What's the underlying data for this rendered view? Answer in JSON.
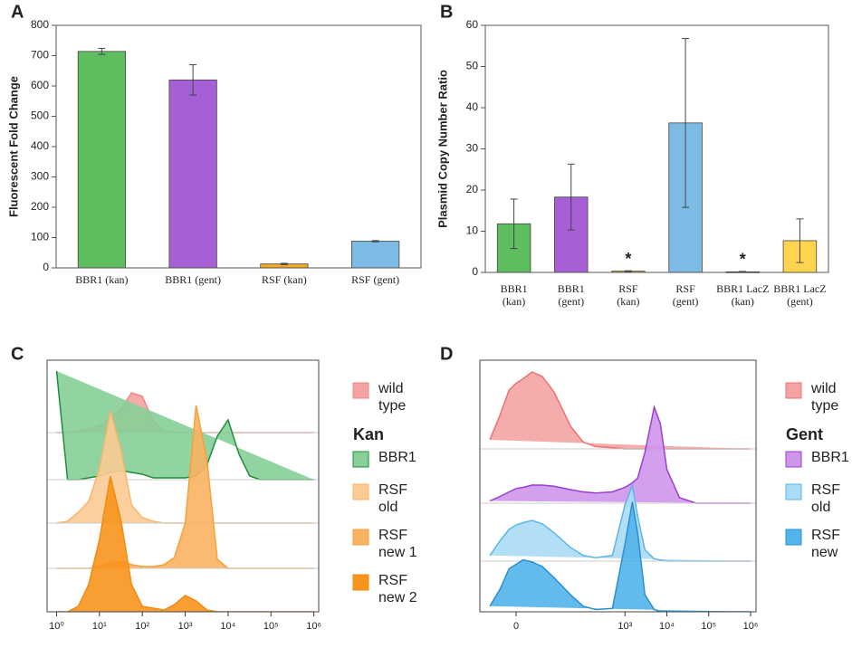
{
  "chart_data": [
    {
      "panel": "A",
      "type": "bar",
      "ylabel": "Fluorescent Fold Change",
      "categories": [
        "BBR1 (kan)",
        "BBR1 (gent)",
        "RSF (kan)",
        "RSF (gent)"
      ],
      "values": [
        714,
        620,
        13,
        88
      ],
      "errors": [
        10,
        50,
        2,
        2
      ],
      "colors": [
        "#5dbd5f",
        "#a65fd4",
        "#f6a623",
        "#7cbbe3"
      ],
      "ylim": [
        0,
        800
      ],
      "yticks": [
        0,
        100,
        200,
        300,
        400,
        500,
        600,
        700,
        800
      ]
    },
    {
      "panel": "B",
      "type": "bar",
      "ylabel": "Plasmid Copy Number Ratio",
      "categories": [
        "BBR1 (kan)",
        "BBR1 (gent)",
        "RSF (kan)",
        "RSF (gent)",
        "BBR1 LacZ (kan)",
        "BBR1 LacZ (gent)"
      ],
      "values": [
        11.8,
        18.3,
        0.3,
        36.3,
        0.15,
        7.7
      ],
      "errors": [
        6,
        8,
        0.1,
        20.5,
        0.1,
        5.3
      ],
      "colors": [
        "#5dbd5f",
        "#a65fd4",
        "#f6a623",
        "#7cbbe3",
        "#a65fd4",
        "#ffd54f"
      ],
      "annotations": [
        {
          "category": "RSF (kan)",
          "text": "*"
        },
        {
          "category": "BBR1 LacZ (kan)",
          "text": "*"
        }
      ],
      "ylim": [
        0,
        60
      ],
      "yticks": [
        0,
        10,
        20,
        30,
        40,
        50,
        60
      ]
    },
    {
      "panel": "C",
      "type": "ridgeline",
      "xscale": "log",
      "legend_title": "Kan",
      "x": [
        1,
        1.8,
        3.2,
        5.6,
        10,
        18,
        32,
        56,
        100,
        180,
        320,
        560,
        1000,
        1800,
        3200,
        5600,
        10000,
        18000,
        32000,
        56000,
        100000,
        180000,
        320000,
        560000,
        1000000
      ],
      "series": [
        {
          "name": "wild type",
          "color": "#f4a3a3",
          "stroke": "#ee8585",
          "values": [
            0,
            0,
            1,
            2,
            4,
            8,
            13,
            22,
            20,
            6,
            1,
            0,
            0,
            0,
            0,
            0,
            0,
            0,
            0,
            0,
            0,
            0,
            0,
            0,
            0
          ]
        },
        {
          "name": "BBR1",
          "color": "#86cf97",
          "stroke": "#1f8f3a",
          "values": [
            60,
            0,
            0,
            1,
            2,
            4,
            5,
            4,
            3,
            1,
            1,
            1,
            1,
            2,
            8,
            24,
            33,
            14,
            2,
            0,
            0,
            0,
            0,
            0,
            0
          ]
        },
        {
          "name": "RSF old",
          "color": "#fbcb93",
          "stroke": "#f8b66a",
          "values": [
            0,
            1,
            6,
            12,
            30,
            62,
            40,
            10,
            3,
            1,
            0,
            0,
            0,
            0,
            0,
            0,
            0,
            0,
            0,
            0,
            0,
            0,
            0,
            0,
            0
          ]
        },
        {
          "name": "RSF new 1",
          "color": "#f9b262",
          "stroke": "#f79f3a",
          "values": [
            0,
            0,
            0,
            0,
            1,
            3,
            4,
            2,
            1,
            1,
            2,
            6,
            25,
            90,
            60,
            5,
            0,
            0,
            0,
            0,
            0,
            0,
            0,
            0,
            0
          ]
        },
        {
          "name": "RSF new 2",
          "color": "#f7941d",
          "stroke": "#f08a10",
          "values": [
            0,
            0,
            3,
            15,
            40,
            75,
            50,
            15,
            3,
            2,
            1,
            4,
            9,
            6,
            1,
            0,
            0,
            0,
            0,
            0,
            0,
            0,
            0,
            0,
            0
          ]
        }
      ],
      "xlim": [
        0.6,
        1300000
      ],
      "xticks": [
        {
          "value": 1,
          "label": "10⁰"
        },
        {
          "value": 10,
          "label": "10¹"
        },
        {
          "value": 100,
          "label": "10²"
        },
        {
          "value": 1000,
          "label": "10³"
        },
        {
          "value": 10000,
          "label": "10⁴"
        },
        {
          "value": 100000,
          "label": "10⁵"
        },
        {
          "value": 1000000,
          "label": "10⁶"
        }
      ]
    },
    {
      "panel": "D",
      "type": "ridgeline",
      "xscale": "biexponential",
      "legend_title": "Gent",
      "x": [
        -10,
        -5,
        -2,
        0,
        2,
        5,
        10,
        20,
        50,
        100,
        200,
        500,
        1000,
        1500,
        2000,
        3000,
        5000,
        7000,
        10000,
        20000,
        50000,
        100000,
        1000000
      ],
      "series": [
        {
          "name": "wild type",
          "color": "#f4a3a3",
          "stroke": "#ee7070",
          "values": [
            8,
            30,
            52,
            58,
            62,
            68,
            64,
            50,
            20,
            6,
            2,
            1,
            0,
            0,
            0,
            0,
            0,
            0,
            0,
            0,
            0,
            0,
            0
          ]
        },
        {
          "name": "BBR1",
          "color": "#cf95ea",
          "stroke": "#9a3fd1",
          "values": [
            2,
            6,
            10,
            13,
            14,
            16,
            16,
            15,
            12,
            10,
            9,
            10,
            14,
            18,
            22,
            45,
            85,
            70,
            30,
            5,
            0,
            0,
            0
          ]
        },
        {
          "name": "RSF old",
          "color": "#abdcf5",
          "stroke": "#5bb6e6",
          "values": [
            5,
            18,
            28,
            32,
            34,
            36,
            33,
            25,
            12,
            5,
            3,
            5,
            50,
            67,
            40,
            10,
            2,
            1,
            0,
            0,
            0,
            0,
            0
          ]
        },
        {
          "name": "RSF new",
          "color": "#52b4eb",
          "stroke": "#2a8fd0",
          "values": [
            5,
            20,
            38,
            42,
            46,
            44,
            40,
            30,
            15,
            5,
            2,
            3,
            60,
            97,
            70,
            15,
            2,
            0,
            0,
            0,
            0,
            0,
            0
          ]
        }
      ],
      "xlim": [
        -18,
        1350000
      ],
      "xticks": [
        0,
        {
          "value": 1000,
          "label": "10³"
        },
        {
          "value": 10000,
          "label": "10⁴"
        },
        {
          "value": 100000,
          "label": "10⁵"
        },
        {
          "value": 1000000,
          "label": "10⁶"
        }
      ]
    }
  ]
}
